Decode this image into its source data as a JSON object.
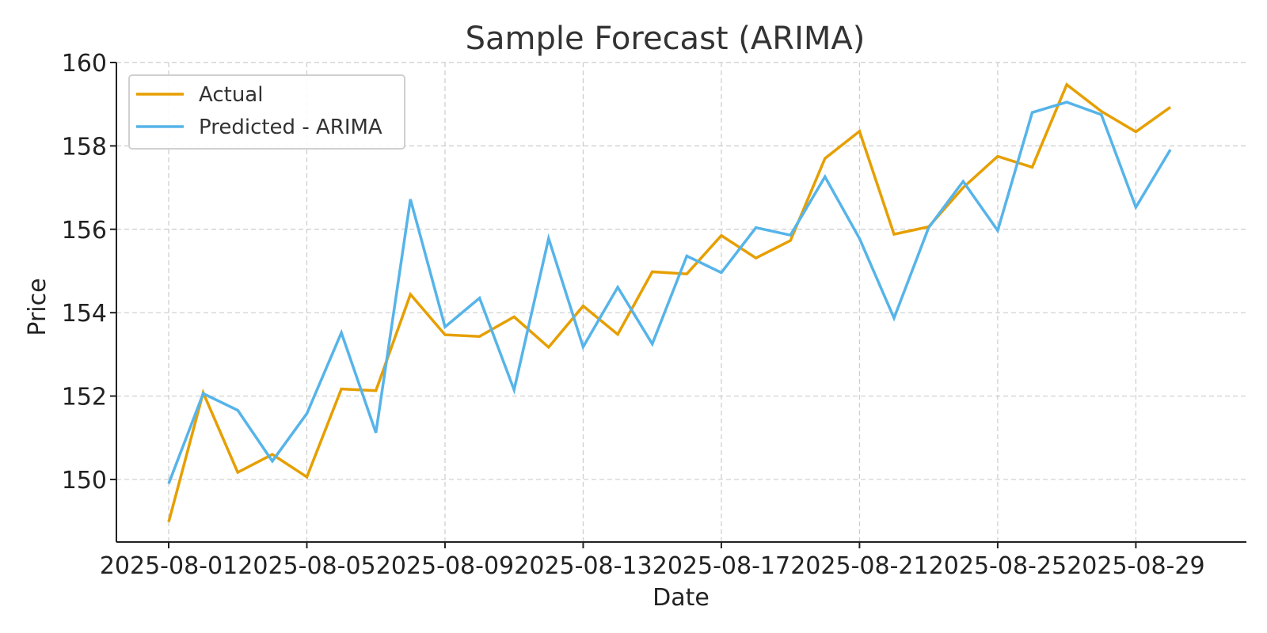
{
  "chart_data": {
    "type": "line",
    "title": "Sample Forecast (ARIMA)",
    "xlabel": "Date",
    "ylabel": "Price",
    "ylim": [
      148.5,
      160
    ],
    "yticks": [
      150,
      152,
      154,
      156,
      158,
      160
    ],
    "xticks": [
      "2025-08-01",
      "2025-08-05",
      "2025-08-09",
      "2025-08-13",
      "2025-08-17",
      "2025-08-21",
      "2025-08-25",
      "2025-08-29"
    ],
    "x_start": "2025-08-01",
    "x_end": "2025-08-30",
    "grid": true,
    "legend_position": "top-left",
    "series": [
      {
        "name": "Actual",
        "color": "#E69F00",
        "x": [
          "2025-08-01",
          "2025-08-02",
          "2025-08-03",
          "2025-08-04",
          "2025-08-05",
          "2025-08-06",
          "2025-08-07",
          "2025-08-08",
          "2025-08-09",
          "2025-08-10",
          "2025-08-11",
          "2025-08-12",
          "2025-08-13",
          "2025-08-14",
          "2025-08-15",
          "2025-08-16",
          "2025-08-17",
          "2025-08-18",
          "2025-08-19",
          "2025-08-20",
          "2025-08-21",
          "2025-08-22",
          "2025-08-23",
          "2025-08-24",
          "2025-08-25",
          "2025-08-26",
          "2025-08-27",
          "2025-08-28",
          "2025-08-29",
          "2025-08-30"
        ],
        "values": [
          148.98,
          152.08,
          150.17,
          150.6,
          150.06,
          152.17,
          152.13,
          154.44,
          153.47,
          153.43,
          153.9,
          153.17,
          154.16,
          153.48,
          154.98,
          154.93,
          155.85,
          155.31,
          155.73,
          157.7,
          158.35,
          155.88,
          156.06,
          157.0,
          157.75,
          157.49,
          159.47,
          158.83,
          158.34,
          158.93
        ]
      },
      {
        "name": "Predicted - ARIMA",
        "color": "#56B4E9",
        "x": [
          "2025-08-01",
          "2025-08-02",
          "2025-08-03",
          "2025-08-04",
          "2025-08-05",
          "2025-08-06",
          "2025-08-07",
          "2025-08-08",
          "2025-08-09",
          "2025-08-10",
          "2025-08-11",
          "2025-08-12",
          "2025-08-13",
          "2025-08-14",
          "2025-08-15",
          "2025-08-16",
          "2025-08-17",
          "2025-08-18",
          "2025-08-19",
          "2025-08-20",
          "2025-08-21",
          "2025-08-22",
          "2025-08-23",
          "2025-08-24",
          "2025-08-25",
          "2025-08-26",
          "2025-08-27",
          "2025-08-28",
          "2025-08-29",
          "2025-08-30"
        ],
        "values": [
          149.9,
          152.06,
          151.66,
          150.44,
          151.58,
          153.52,
          151.12,
          156.72,
          153.66,
          154.35,
          152.15,
          155.78,
          153.18,
          154.61,
          153.25,
          155.36,
          154.96,
          156.04,
          155.86,
          157.26,
          155.78,
          153.87,
          156.04,
          157.15,
          155.97,
          158.8,
          159.05,
          158.75,
          156.53,
          157.91
        ]
      }
    ]
  }
}
